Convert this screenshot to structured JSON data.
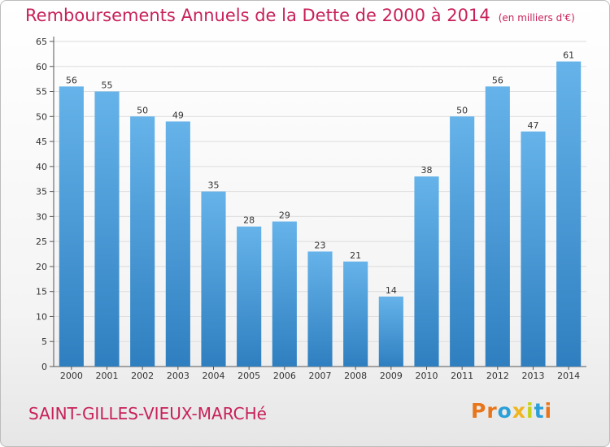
{
  "title": "Remboursements Annuels de la Dette de 2000 à 2014",
  "unit": "(en milliers d'€)",
  "commune": "SAINT-GILLES-VIEUX-MARCHé",
  "logo": {
    "letters": [
      "P",
      "r",
      "o",
      "x",
      "i",
      "t",
      "i"
    ],
    "colors": [
      "#e8751a",
      "#e8751a",
      "#2a9fd8",
      "#f0b41c",
      "#c5d219",
      "#2a9fd8",
      "#e8751a"
    ]
  },
  "colors": {
    "bar_top": "#66b3ea",
    "bar_bottom": "#2f7fc0",
    "title": "#c8205a"
  },
  "chart_data": {
    "type": "bar",
    "categories": [
      "2000",
      "2001",
      "2002",
      "2003",
      "2004",
      "2005",
      "2006",
      "2007",
      "2008",
      "2009",
      "2010",
      "2011",
      "2012",
      "2013",
      "2014"
    ],
    "values": [
      56,
      55,
      50,
      49,
      35,
      28,
      29,
      23,
      21,
      14,
      38,
      50,
      56,
      47,
      61
    ],
    "ylim": [
      0,
      65
    ],
    "yticks": [
      0,
      5,
      10,
      15,
      20,
      25,
      30,
      35,
      40,
      45,
      50,
      55,
      60,
      65
    ],
    "grid": true,
    "data_labels": true
  }
}
